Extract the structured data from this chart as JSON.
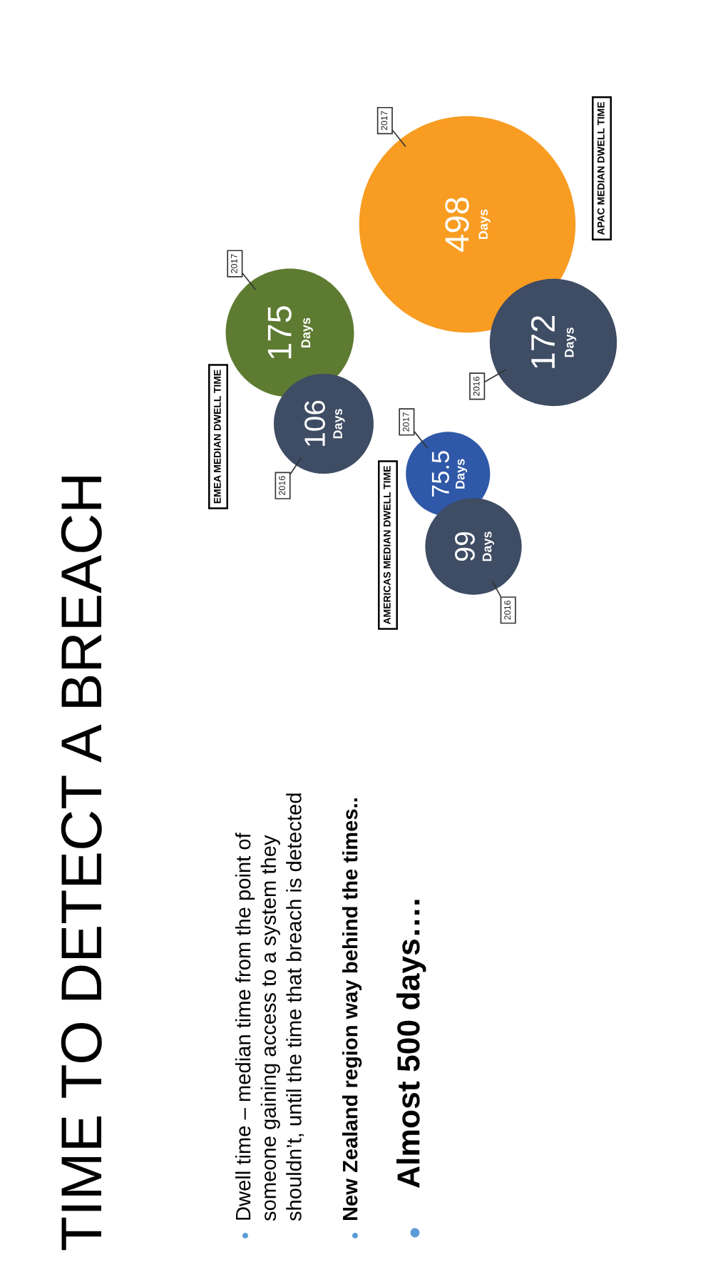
{
  "chart_data": {
    "type": "other",
    "title": "TIME TO DETECT A BREACH",
    "categories": [
      "AMERICAS MEDIAN DWELL TIME",
      "EMEA MEDIAN DWELL TIME",
      "APAC MEDIAN DWELL TIME"
    ],
    "series": [
      {
        "name": "2016",
        "color": "#3e4c64",
        "values": [
          99,
          106,
          172
        ],
        "value_labels": [
          "99\nDays",
          "106\nDays",
          "172\nDays"
        ]
      },
      {
        "name": "2017",
        "colors": [
          "#2f58a8",
          "#5e7b32",
          "#f89c22"
        ],
        "values": [
          75.5,
          175,
          498
        ],
        "value_labels": [
          "75.5\nDays",
          "175\nDays",
          "498\nDays"
        ]
      }
    ],
    "annotations": [
      "Dwell time – median time from the point of\nsomeone gaining access to a system they\nshouldn’t, until the time that breach is detected",
      "New Zealand region way behind the times..",
      "Almost 500 days…."
    ]
  }
}
